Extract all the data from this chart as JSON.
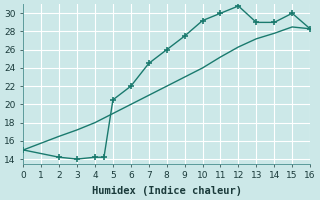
{
  "xlabel": "Humidex (Indice chaleur)",
  "bg_color": "#cce8e8",
  "grid_color": "#ffffff",
  "line_color": "#1a7a6e",
  "xlim": [
    0,
    16
  ],
  "ylim": [
    13.5,
    31
  ],
  "xticks": [
    0,
    1,
    2,
    3,
    4,
    5,
    6,
    7,
    8,
    9,
    10,
    11,
    12,
    13,
    14,
    15,
    16
  ],
  "yticks": [
    14,
    16,
    18,
    20,
    22,
    24,
    26,
    28,
    30
  ],
  "line1_x": [
    0,
    2,
    3,
    4,
    4.5,
    5,
    6,
    7,
    8,
    9,
    10,
    11,
    12,
    13,
    14,
    15,
    16
  ],
  "line1_y": [
    15.0,
    14.2,
    14.0,
    14.2,
    14.2,
    20.5,
    22.0,
    24.5,
    26.0,
    27.5,
    29.2,
    30.0,
    30.8,
    29.0,
    29.0,
    30.0,
    28.3
  ],
  "line2_x": [
    0,
    2,
    3,
    4,
    5,
    6,
    7,
    8,
    9,
    10,
    11,
    12,
    13,
    14,
    15,
    16
  ],
  "line2_y": [
    15.0,
    16.5,
    17.2,
    18.0,
    19.0,
    20.0,
    21.0,
    22.0,
    23.0,
    24.0,
    25.2,
    26.3,
    27.2,
    27.8,
    28.5,
    28.3
  ],
  "marker": "P",
  "markersize": 3,
  "linewidth": 1.0,
  "tick_fontsize": 6.5,
  "xlabel_fontsize": 7.5
}
